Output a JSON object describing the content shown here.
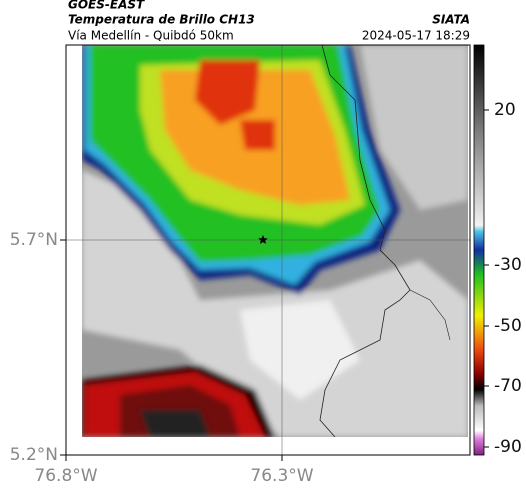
{
  "header": {
    "title": "GOES-EAST",
    "subtitle": "Temperatura de Brillo CH13",
    "route": "Vía Medellín - Quibdó 50km",
    "source": "SIATA",
    "timestamp": "2024-05-17 18:29"
  },
  "axes": {
    "y_ticks": [
      "5.7°N",
      "5.2°N"
    ],
    "x_ticks": [
      "76.8°W",
      "76.3°W"
    ]
  },
  "colorbar": {
    "ticks": [
      20,
      -30,
      -50,
      -70,
      -90
    ]
  }
}
